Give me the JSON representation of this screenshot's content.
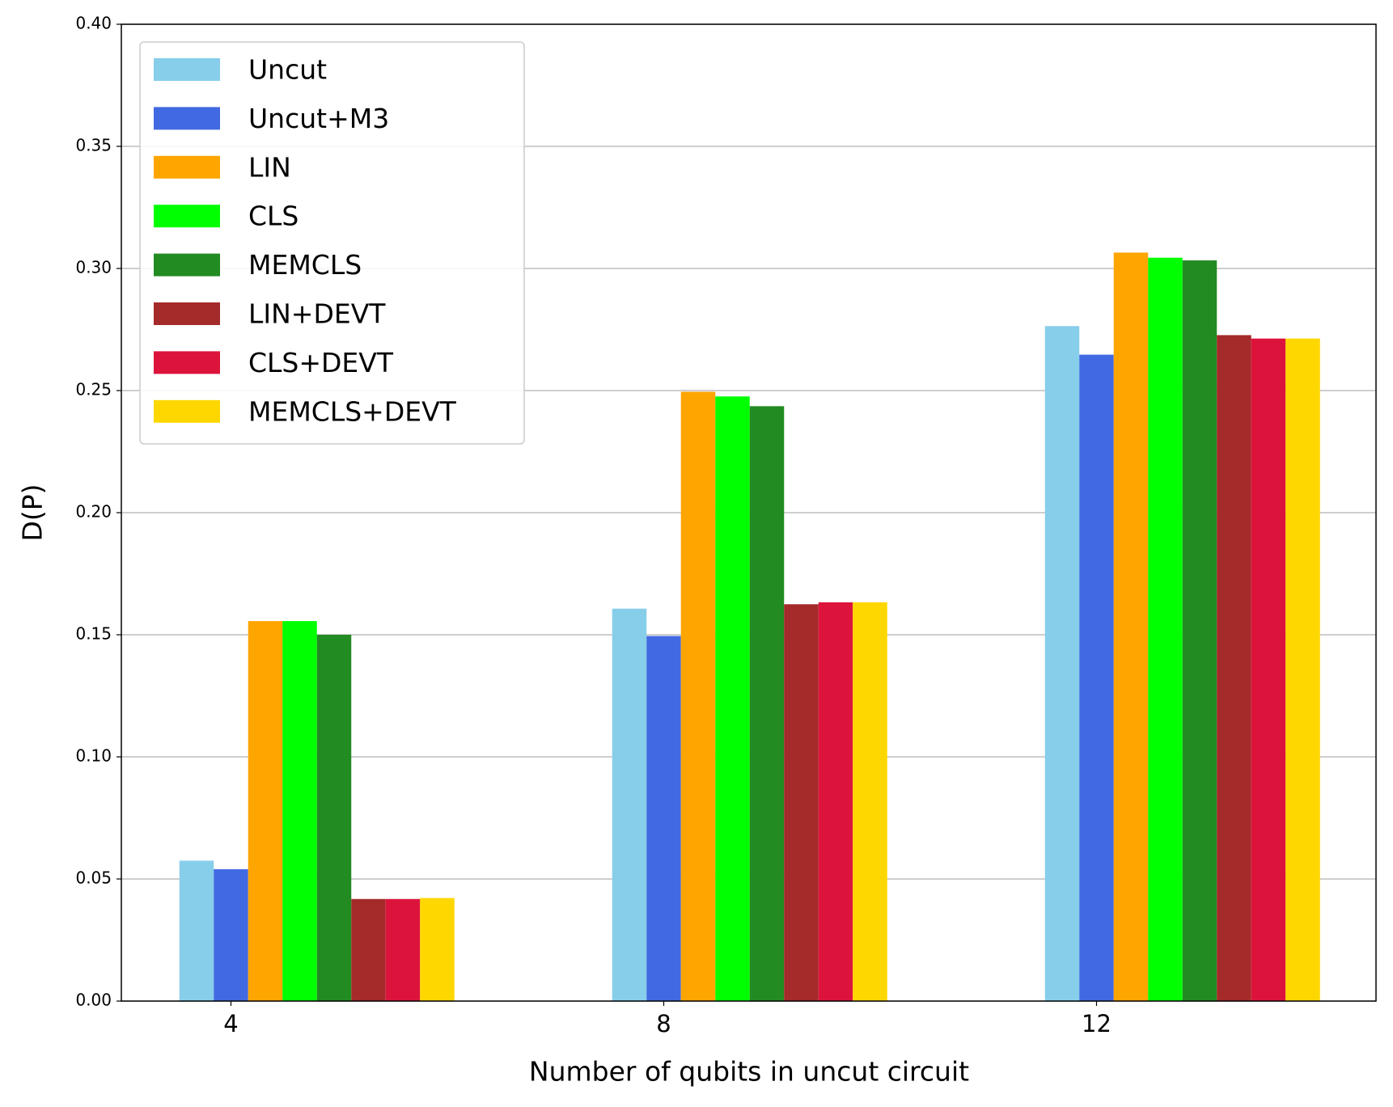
{
  "chart_data": {
    "type": "bar",
    "categories": [
      "4",
      "8",
      "12"
    ],
    "x_label": "Number of qubits in uncut circuit",
    "y_label": "D(P)",
    "ylim": [
      0,
      0.4
    ],
    "yticks": [
      {
        "value": 0,
        "label": "0.00"
      },
      {
        "value": 0.05,
        "label": "0.05"
      },
      {
        "value": 0.1,
        "label": "0.10"
      },
      {
        "value": 0.15,
        "label": "0.15"
      },
      {
        "value": 0.2,
        "label": "0.20"
      },
      {
        "value": 0.25,
        "label": "0.25"
      },
      {
        "value": 0.3,
        "label": "0.30"
      },
      {
        "value": 0.35,
        "label": "0.35"
      },
      {
        "value": 0.4,
        "label": "0.40"
      }
    ],
    "grid": true,
    "legend": "upper left",
    "series": [
      {
        "name": "Uncut",
        "color": "#87ceeb",
        "values": [
          0.0575,
          0.1607,
          0.2764
        ]
      },
      {
        "name": "Uncut+M3",
        "color": "#4169e1",
        "values": [
          0.054,
          0.1495,
          0.2647
        ]
      },
      {
        "name": "LIN",
        "color": "#ffa500",
        "values": [
          0.1556,
          0.2495,
          0.3065
        ]
      },
      {
        "name": "CLS",
        "color": "#00ff00",
        "values": [
          0.1556,
          0.2476,
          0.3044
        ]
      },
      {
        "name": "MEMCLS",
        "color": "#228b22",
        "values": [
          0.15,
          0.2436,
          0.3033
        ]
      },
      {
        "name": "LIN+DEVT",
        "color": "#a52a2a",
        "values": [
          0.0418,
          0.1625,
          0.2727
        ]
      },
      {
        "name": "CLS+DEVT",
        "color": "#dc143c",
        "values": [
          0.0418,
          0.1633,
          0.2713
        ]
      },
      {
        "name": "MEMCLS+DEVT",
        "color": "#ffd700",
        "values": [
          0.0422,
          0.1633,
          0.2713
        ]
      }
    ]
  }
}
